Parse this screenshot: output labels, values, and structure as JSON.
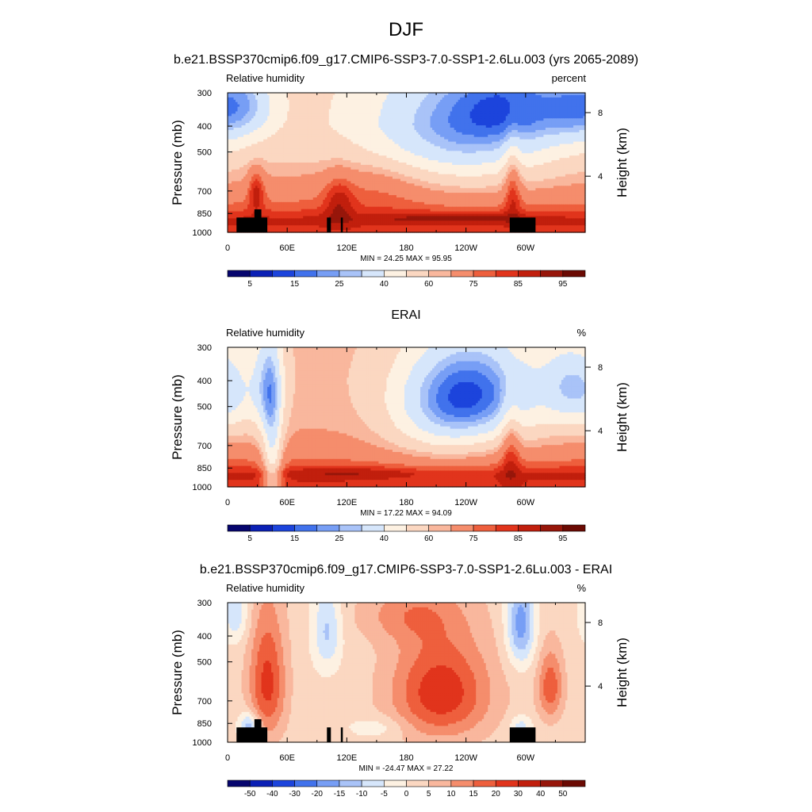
{
  "figure": {
    "title": "DJF",
    "colors": {
      "land_mask": "#000000"
    }
  },
  "chart_data": [
    {
      "type": "heatmap",
      "title": "b.e21.BSSP370cmip6.f09_g17.CMIP6-SSP3-7.0-SSP1-2.6Lu.003 (yrs 2065-2089)",
      "left_label": "Relative humidity",
      "right_label": "percent",
      "ylabel": "Pressure (mb)",
      "y2label": "Height (km)",
      "x_ticks": [
        "0",
        "60E",
        "120E",
        "180",
        "120W",
        "60W"
      ],
      "x_tick_lon": [
        0,
        60,
        120,
        180,
        240,
        300
      ],
      "xlim": [
        0,
        360
      ],
      "y_ticks": [
        "300",
        "400",
        "500",
        "700",
        "850",
        "1000"
      ],
      "y_tick_p": [
        300,
        400,
        500,
        700,
        850,
        1000
      ],
      "ylim": [
        1000,
        300
      ],
      "y_scale": "log",
      "y2_ticks": [
        "8",
        "4"
      ],
      "y2_tick_p": [
        356,
        616
      ],
      "stats": "MIN =  24.25  MAX =  95.95",
      "colorbar": {
        "labels": [
          "5",
          "15",
          "25",
          "40",
          "60",
          "75",
          "85",
          "95"
        ],
        "colors": [
          "#06056e",
          "#0b20b5",
          "#1c44dc",
          "#4172ec",
          "#779ef5",
          "#a9c3f8",
          "#d6e6fb",
          "#fdf1e2",
          "#fbd7c1",
          "#f9b79d",
          "#f58d6c",
          "#ee5f3d",
          "#e1341c",
          "#c11f0d",
          "#97160a",
          "#6b0a03"
        ]
      },
      "field": {
        "levels": [
          5,
          10,
          15,
          20,
          25,
          30,
          40,
          50,
          60,
          65,
          75,
          80,
          85,
          90,
          95
        ],
        "base": [
          {
            "p": 300,
            "v": 55
          },
          {
            "p": 400,
            "v": 55
          },
          {
            "p": 500,
            "v": 58
          },
          {
            "p": 600,
            "v": 64
          },
          {
            "p": 700,
            "v": 70
          },
          {
            "p": 800,
            "v": 77
          },
          {
            "p": 850,
            "v": 82
          },
          {
            "p": 900,
            "v": 87
          },
          {
            "p": 1000,
            "v": 82
          }
        ],
        "blobs": [
          {
            "lon": 230,
            "p": 420,
            "amp": -30,
            "w": 70,
            "h": 170
          },
          {
            "lon": 290,
            "p": 330,
            "amp": -22,
            "w": 45,
            "h": 90
          },
          {
            "lon": 355,
            "p": 340,
            "amp": -20,
            "w": 25,
            "h": 80
          },
          {
            "lon": 25,
            "p": 330,
            "amp": -14,
            "w": 20,
            "h": 70
          },
          {
            "lon": 29,
            "p": 690,
            "amp": 18,
            "w": 6,
            "h": 90
          },
          {
            "lon": 112,
            "p": 760,
            "amp": 12,
            "w": 10,
            "h": 120
          },
          {
            "lon": 287,
            "p": 650,
            "amp": 18,
            "w": 6,
            "h": 150
          },
          {
            "lon": 230,
            "p": 880,
            "amp": 9,
            "w": 45,
            "h": 25
          },
          {
            "lon": 150,
            "p": 640,
            "amp": 10,
            "w": 40,
            "h": 120
          }
        ]
      },
      "terrain": [
        {
          "lon0": 9,
          "lon1": 40,
          "p_top": 880
        },
        {
          "lon0": 27,
          "lon1": 34,
          "p_top": 820
        },
        {
          "lon0": 100,
          "lon1": 104,
          "p_top": 880
        },
        {
          "lon0": 114,
          "lon1": 116,
          "p_top": 880
        },
        {
          "lon0": 284,
          "lon1": 310,
          "p_top": 880
        }
      ]
    },
    {
      "type": "heatmap",
      "title": "ERAI",
      "left_label": "Relative humidity",
      "right_label": "%",
      "ylabel": "Pressure (mb)",
      "y2label": "Height (km)",
      "x_ticks": [
        "0",
        "60E",
        "120E",
        "180",
        "120W",
        "60W"
      ],
      "x_tick_lon": [
        0,
        60,
        120,
        180,
        240,
        300
      ],
      "xlim": [
        0,
        360
      ],
      "y_ticks": [
        "300",
        "400",
        "500",
        "700",
        "850",
        "1000"
      ],
      "y_tick_p": [
        300,
        400,
        500,
        700,
        850,
        1000
      ],
      "ylim": [
        1000,
        300
      ],
      "y_scale": "log",
      "y2_ticks": [
        "8",
        "4"
      ],
      "y2_tick_p": [
        356,
        616
      ],
      "stats": "MIN =  17.22  MAX =  94.09",
      "colorbar": {
        "labels": [
          "5",
          "15",
          "25",
          "40",
          "60",
          "75",
          "85",
          "95"
        ],
        "colors": [
          "#06056e",
          "#0b20b5",
          "#1c44dc",
          "#4172ec",
          "#779ef5",
          "#a9c3f8",
          "#d6e6fb",
          "#fdf1e2",
          "#fbd7c1",
          "#f9b79d",
          "#f58d6c",
          "#ee5f3d",
          "#e1341c",
          "#c11f0d",
          "#97160a",
          "#6b0a03"
        ]
      },
      "field": {
        "levels": [
          5,
          10,
          15,
          20,
          25,
          30,
          40,
          50,
          60,
          65,
          75,
          80,
          85,
          90,
          95
        ],
        "base": [
          {
            "p": 300,
            "v": 62
          },
          {
            "p": 400,
            "v": 62
          },
          {
            "p": 500,
            "v": 63
          },
          {
            "p": 600,
            "v": 65
          },
          {
            "p": 700,
            "v": 69
          },
          {
            "p": 800,
            "v": 76
          },
          {
            "p": 850,
            "v": 81
          },
          {
            "p": 900,
            "v": 86
          },
          {
            "p": 1000,
            "v": 84
          }
        ],
        "blobs": [
          {
            "lon": 250,
            "p": 440,
            "amp": -40,
            "w": 50,
            "h": 150
          },
          {
            "lon": 215,
            "p": 560,
            "amp": -16,
            "w": 40,
            "h": 180
          },
          {
            "lon": 40,
            "p": 420,
            "amp": -30,
            "w": 12,
            "h": 140
          },
          {
            "lon": 345,
            "p": 420,
            "amp": -25,
            "w": 20,
            "h": 110
          },
          {
            "lon": 45,
            "p": 800,
            "amp": -28,
            "w": 7,
            "h": 300
          },
          {
            "lon": 8,
            "p": 460,
            "amp": -12,
            "w": 14,
            "h": 120
          },
          {
            "lon": 285,
            "p": 680,
            "amp": 16,
            "w": 7,
            "h": 170
          },
          {
            "lon": 120,
            "p": 880,
            "amp": 6,
            "w": 50,
            "h": 25
          }
        ]
      },
      "terrain": []
    },
    {
      "type": "heatmap",
      "title": "b.e21.BSSP370cmip6.f09_g17.CMIP6-SSP3-7.0-SSP1-2.6Lu.003 - ERAI",
      "left_label": "Relative humidity",
      "right_label": "%",
      "ylabel": "Pressure (mb)",
      "y2label": "Height (km)",
      "x_ticks": [
        "0",
        "60E",
        "120E",
        "180",
        "120W",
        "60W"
      ],
      "x_tick_lon": [
        0,
        60,
        120,
        180,
        240,
        300
      ],
      "xlim": [
        0,
        360
      ],
      "y_ticks": [
        "300",
        "400",
        "500",
        "700",
        "850",
        "1000"
      ],
      "y_tick_p": [
        300,
        400,
        500,
        700,
        850,
        1000
      ],
      "ylim": [
        1000,
        300
      ],
      "y_scale": "log",
      "y2_ticks": [
        "8",
        "4"
      ],
      "y2_tick_p": [
        356,
        616
      ],
      "stats": "MIN = -24.47  MAX =  27.22",
      "colorbar": {
        "labels": [
          "-50",
          "-40",
          "-30",
          "-20",
          "-15",
          "-10",
          "-5",
          "0",
          "5",
          "10",
          "15",
          "20",
          "30",
          "40",
          "50"
        ],
        "colors": [
          "#06056e",
          "#0b20b5",
          "#1c44dc",
          "#4172ec",
          "#779ef5",
          "#a9c3f8",
          "#d6e6fb",
          "#fdf1e2",
          "#fbd7c1",
          "#f9b79d",
          "#f58d6c",
          "#ee5f3d",
          "#e1341c",
          "#c11f0d",
          "#97160a",
          "#6b0a03"
        ]
      },
      "field": {
        "levels": [
          -50,
          -40,
          -30,
          -20,
          -15,
          -10,
          -5,
          0,
          5,
          10,
          15,
          20,
          30,
          40,
          50
        ],
        "base": [
          {
            "p": 300,
            "v": 2
          },
          {
            "p": 1000,
            "v": 2
          }
        ],
        "blobs": [
          {
            "lon": 215,
            "p": 650,
            "amp": 22,
            "w": 35,
            "h": 210
          },
          {
            "lon": 40,
            "p": 600,
            "amp": 20,
            "w": 13,
            "h": 230
          },
          {
            "lon": 325,
            "p": 620,
            "amp": 17,
            "w": 9,
            "h": 130
          },
          {
            "lon": 295,
            "p": 360,
            "amp": -20,
            "w": 10,
            "h": 100
          },
          {
            "lon": 22,
            "p": 870,
            "amp": -17,
            "w": 7,
            "h": 70
          },
          {
            "lon": 100,
            "p": 380,
            "amp": -13,
            "w": 10,
            "h": 100
          },
          {
            "lon": 8,
            "p": 330,
            "amp": -11,
            "w": 9,
            "h": 60
          },
          {
            "lon": 180,
            "p": 330,
            "amp": 9,
            "w": 35,
            "h": 60
          },
          {
            "lon": 150,
            "p": 880,
            "amp": -6,
            "w": 20,
            "h": 60
          },
          {
            "lon": 295,
            "p": 880,
            "amp": -10,
            "w": 8,
            "h": 60
          }
        ]
      },
      "terrain": [
        {
          "lon0": 9,
          "lon1": 40,
          "p_top": 880
        },
        {
          "lon0": 27,
          "lon1": 34,
          "p_top": 820
        },
        {
          "lon0": 100,
          "lon1": 104,
          "p_top": 880
        },
        {
          "lon0": 114,
          "lon1": 116,
          "p_top": 880
        },
        {
          "lon0": 284,
          "lon1": 310,
          "p_top": 880
        }
      ]
    }
  ]
}
